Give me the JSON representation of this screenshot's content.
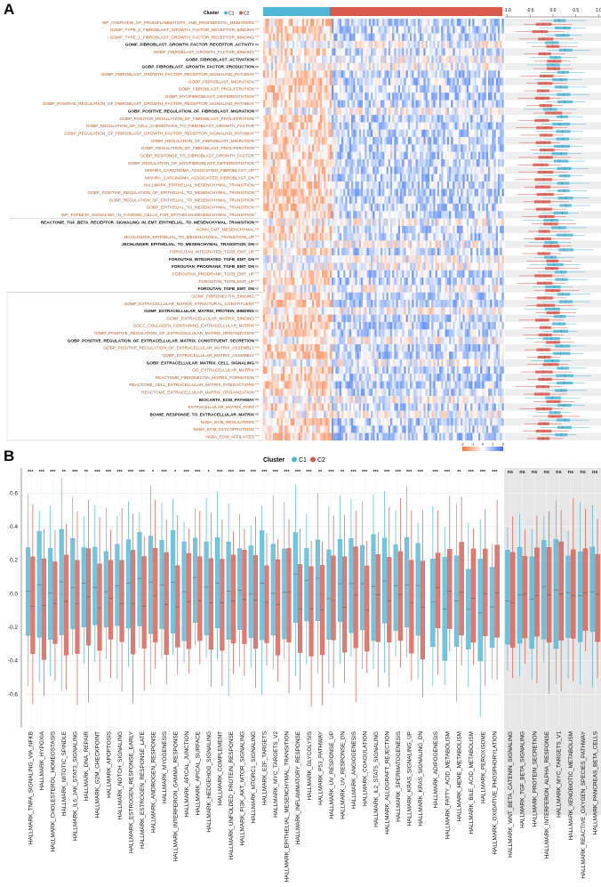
{
  "panel_a": {
    "letter": "A",
    "cluster_label": "Cluster",
    "legend": [
      {
        "name": "C1",
        "color": "#4fb6d6"
      },
      {
        "name": "C2",
        "color": "#d9594c"
      }
    ],
    "scale_ticks": [
      "-1.0",
      "-0.5",
      "0.0",
      "0.5",
      "1.0"
    ],
    "colorbar_ticks": [
      "-2",
      "-1",
      "0",
      "1",
      "2"
    ],
    "rows": [
      {
        "label": "WP_OVERVIEW_OF_PROINFLAMMATORY_AND_PROFIBROTIC_MEDIATORS",
        "sig": "***",
        "color": "#b5541a"
      },
      {
        "label": "GOMF_TYPE_2_FIBROBLAST_GROWTH_FACTOR_RECEPTOR_BINDING",
        "sig": "***",
        "color": "#b5541a"
      },
      {
        "label": "GOMF_TYPE_1_FIBROBLAST_GROWTH_FACTOR_RECEPTOR_BINDING",
        "sig": "***",
        "color": "#b5541a"
      },
      {
        "label": "GOMF_FIBROBLAST_GROWTH_FACTOR_RECEPTOR_ACTIVITY",
        "sig": "ns",
        "color": "#111111"
      },
      {
        "label": "GOMF_FIBROBLAST_GROWTH_FACTOR_BINDING",
        "sig": "***",
        "color": "#b5541a"
      },
      {
        "label": "GOBP_FIBROBLAST_ACTIVATION",
        "sig": "ns",
        "color": "#111111"
      },
      {
        "label": "GOBP_FIBROBLAST_GROWTH_FACTOR_PRODUCTION",
        "sig": "ns",
        "color": "#111111"
      },
      {
        "label": "GOBP_FIBROBLAST_GROWTH_FACTOR_RECEPTOR_SIGNALING_PATHWAY",
        "sig": "***",
        "color": "#b5541a"
      },
      {
        "label": "GOBP_FIBROBLAST_MIGRATION",
        "sig": "***",
        "color": "#b5541a"
      },
      {
        "label": "GOBP_FIBROBLAST_PROLIFERATION",
        "sig": "***",
        "color": "#b5541a"
      },
      {
        "label": "GOBP_MYOFIBROBLAST_DIFFERENTIATION",
        "sig": "***",
        "color": "#b5541a"
      },
      {
        "label": "GOBP_POSITIVE_REGULATION_OF_FIBROBLAST_GROWTH_FACTOR_RECEPTOR_SIGNALING_PATHWAY",
        "sig": "***",
        "color": "#b5541a"
      },
      {
        "label": "GOBP_POSITIVE_REGULATION_OF_FIBROBLAST_MIGRATION",
        "sig": "ns",
        "color": "#111111"
      },
      {
        "label": "GOBP_POSITIVE_REGULATION_OF_FIBROBLAST_PROLIFERATION",
        "sig": "***",
        "color": "#b5541a"
      },
      {
        "label": "GOBP_REGULATION_OF_CELL_CHEMOTAXIS_TO_FIBROBLAST_GROWTH_FACTOR",
        "sig": "***",
        "color": "#b5541a"
      },
      {
        "label": "GOBP_REGULATION_OF_FIBROBLAST_GROWTH_FACTOR_RECEPTOR_SIGNALING_PATHWAY",
        "sig": "***",
        "color": "#b5541a"
      },
      {
        "label": "GOBP_REGULATION_OF_FIBROBLAST_MIGRATION",
        "sig": "***",
        "color": "#b5541a"
      },
      {
        "label": "GOBP_REGULATION_OF_FIBROBLAST_PROLIFERATION",
        "sig": "***",
        "color": "#b5541a"
      },
      {
        "label": "GOBP_RESPONSE_TO_FIBROBLAST_GROWTH_FACTOR",
        "sig": "***",
        "color": "#b5541a"
      },
      {
        "label": "GOBP_REGULATION_OF_MYOFIBROBLAST_DIFFERENTIATION",
        "sig": "***",
        "color": "#b5541a"
      },
      {
        "label": "MISHRA_CARCINOMA_ASSOCIATED_FIBROBLAST_UP",
        "sig": "***",
        "color": "#b5541a"
      },
      {
        "label": "MISHRA_CARCINOMA_ASSOCIATED_FIBROBLAST_DN",
        "sig": "***",
        "color": "#b5541a"
      },
      {
        "label": "HALLMARK_EPITHELIAL_MESENCHYMAL_TRANSITION",
        "sig": "***",
        "color": "#b5541a"
      },
      {
        "label": "GOBP_POSITIVE_REGULATION_OF_EPITHELIAL_TO_MESENCHYMAL_TRANSITION",
        "sig": "***",
        "color": "#b5541a"
      },
      {
        "label": "GOBP_REGULATION_OF_EPITHELIAL_TO_MESENCHYMAL_TRANSITION",
        "sig": "***",
        "color": "#b5541a"
      },
      {
        "label": "GOBP_EPITHELIAL_TO_MESENCHYMAL_TRANSITION",
        "sig": "***",
        "color": "#b5541a"
      },
      {
        "label": "WP_TGFBETA_SIGNALING_IN_THYROID_CELLS_FOR_EPITHELIALMESENCHYMAL_TRANSITION",
        "sig": "*",
        "color": "#b5541a"
      },
      {
        "label": "REACTOME_TGF_BETA_RECEPTOR_SIGNALING_IN_EMT_EPITHELIAL_TO_MESENCHYMAL_TRANSITION",
        "sig": "ns",
        "color": "#111111"
      },
      {
        "label": "KOHN_EMT_MESENCHYMAL",
        "sig": "***",
        "color": "#b5541a"
      },
      {
        "label": "JECHLINGER_EPITHELIAL_TO_MESENCHYMAL_TRANSITION_UP",
        "sig": "***",
        "color": "#b5541a"
      },
      {
        "label": "JECHLINGER_EPITHELIAL_TO_MESENCHYMAL_TRANSITION_DN",
        "sig": "ns",
        "color": "#111111"
      },
      {
        "label": "FOROUTAN_INTEGRATED_TGFB_EMT_UP",
        "sig": "***",
        "color": "#b5541a"
      },
      {
        "label": "FOROUTAN_INTEGRATED_TGFB_EMT_DN",
        "sig": "ns",
        "color": "#111111"
      },
      {
        "label": "FOROUTAN_PRODRANK_TGFB_EMT_DN",
        "sig": "ns",
        "color": "#111111"
      },
      {
        "label": "FOROUTAN_PRODRANK_TGFB_EMT_UP",
        "sig": "***",
        "color": "#b5541a"
      },
      {
        "label": "FOROUTAN_TGFB_EMT_UP",
        "sig": "***",
        "color": "#b5541a"
      },
      {
        "label": "FOROUTAN_TGFB_EMT_DN",
        "sig": "ns",
        "color": "#111111"
      },
      {
        "label": "GOMF_FIBRONECTIN_BINDING",
        "sig": "***",
        "color": "#b5541a"
      },
      {
        "label": "GOMF_EXTRACELLULAR_MATRIX_STRUCTURAL_CONSTITUENT",
        "sig": "***",
        "color": "#b5541a"
      },
      {
        "label": "GOMF_EXTRACELLULAR_MATRIX_PROTEIN_BINDING",
        "sig": "ns",
        "color": "#111111"
      },
      {
        "label": "GOMF_EXTRACELLULAR_MATRIX_BINDING",
        "sig": "***",
        "color": "#b5541a"
      },
      {
        "label": "GOCC_COLLAGEN_CONTAINING_EXTRACELLULAR_MATRIX",
        "sig": "***",
        "color": "#b5541a"
      },
      {
        "label": "GOBP_POSITIVE_REGULATION_OF_EXTRACELLULAR_MATRIX_ORGANIZATION",
        "sig": "***",
        "color": "#b5541a"
      },
      {
        "label": "GOBP_POSITIVE_REGULATION_OF_EXTRACELLULAR_MATRIX_CONSTITUENT_SECRETION",
        "sig": "ns",
        "color": "#111111"
      },
      {
        "label": "GOBP_POSITIVE_REGULATION_OF_EXTRACELLULAR_MATRIX_ASSEMBLY",
        "sig": "***",
        "color": "#b5541a"
      },
      {
        "label": "GOBP_EXTRACELLULAR_MATRIX_ASSEMBLY",
        "sig": "***",
        "color": "#b5541a"
      },
      {
        "label": "GOBP_EXTRACELLULAR_MATRIX_CELL_SIGNALING",
        "sig": "ns",
        "color": "#111111"
      },
      {
        "label": "GO_EXTRACELLULAR_MATRIX",
        "sig": "***",
        "color": "#b5541a"
      },
      {
        "label": "REACTOME_FIBRONECTIN_MATRIX_FORMATION",
        "sig": "***",
        "color": "#b5541a"
      },
      {
        "label": "REACTOME_CELL_EXTRACELLULAR_MATRIX_INTERACTIONS",
        "sig": "***",
        "color": "#b5541a"
      },
      {
        "label": "REACTOME_EXTRACELLULAR_MATRIX_ORGANIZATION",
        "sig": "***",
        "color": "#b5541a"
      },
      {
        "label": "BIOCARTA_ECM_PATHWAY",
        "sig": "ns",
        "color": "#111111"
      },
      {
        "label": "EXTRACELLULAR_MATRIX_PART",
        "sig": "***",
        "color": "#b5541a"
      },
      {
        "label": "BOWIE_RESPONSE_TO_EXTRACELLULAR_MATRIX",
        "sig": "ns",
        "color": "#111111"
      },
      {
        "label": "NABA_ECM_REGULATORS",
        "sig": "***",
        "color": "#b5541a"
      },
      {
        "label": "NABA_ECM_GLYCOPROTEINS",
        "sig": "***",
        "color": "#b5541a"
      },
      {
        "label": "NABA_ECM_AFFILIATED",
        "sig": "***",
        "color": "#b5541a"
      }
    ]
  },
  "chart_data": {
    "type": "box",
    "panel": "B",
    "legend_title": "Cluster",
    "series": [
      {
        "name": "C1",
        "color": "#4fb6d6"
      },
      {
        "name": "C2",
        "color": "#d9594c"
      }
    ],
    "ylim": [
      -0.8,
      0.75
    ],
    "yticks": [
      "0.6",
      "0.4",
      "0.2",
      "0.0",
      "-0.2",
      "-0.4",
      "-0.6"
    ],
    "ytick_values": [
      0.6,
      0.4,
      0.2,
      0.0,
      -0.2,
      -0.4,
      -0.6
    ],
    "groups": [
      {
        "name": "group1",
        "shaded": false,
        "categories": [
          {
            "label": "HALLMARK_TNFA_SIGNALING_VIA_NFKB",
            "sig": "***"
          },
          {
            "label": "HALLMARK_HYPOXIA",
            "sig": "***"
          },
          {
            "label": "HALLMARK_CHOLESTEROL_HOMEOSTASIS",
            "sig": "***"
          },
          {
            "label": "HALLMARK_MITOTIC_SPINDLE",
            "sig": "**"
          },
          {
            "label": "HALLMARK_IL6_JAK_STAT3_SIGNALING",
            "sig": "***"
          },
          {
            "label": "HALLMARK_DNA_REPAIR",
            "sig": "**"
          },
          {
            "label": "HALLMARK_G2M_CHECKPOINT",
            "sig": "***"
          },
          {
            "label": "HALLMARK_APOPTOSIS",
            "sig": "***"
          },
          {
            "label": "HALLMARK_NOTCH_SIGNALING",
            "sig": "***"
          },
          {
            "label": "HALLMARK_ESTROGEN_RESPONSE_EARLY",
            "sig": "***"
          },
          {
            "label": "HALLMARK_ESTROGEN_RESPONSE_LATE",
            "sig": "***"
          },
          {
            "label": "HALLMARK_ANDROGEN_RESPONSE",
            "sig": "*"
          },
          {
            "label": "HALLMARK_MYOGENESIS",
            "sig": "***"
          },
          {
            "label": "HALLMARK_INTERFERON_GAMMA_RESPONSE",
            "sig": "*"
          },
          {
            "label": "HALLMARK_APICAL_JUNCTION",
            "sig": "***"
          },
          {
            "label": "HALLMARK_APICAL_SURFACE",
            "sig": "***"
          },
          {
            "label": "HALLMARK_HEDGEHOG_SIGNALING",
            "sig": "*"
          },
          {
            "label": "HALLMARK_COMPLEMENT",
            "sig": "***"
          },
          {
            "label": "HALLMARK_UNFOLDED_PROTEIN_RESPONSE",
            "sig": "***"
          },
          {
            "label": "HALLMARK_PI3K_AKT_MTOR_SIGNALING",
            "sig": "***"
          },
          {
            "label": "HALLMARK_MTORC1_SIGNALING",
            "sig": "***"
          },
          {
            "label": "HALLMARK_E2F_TARGETS",
            "sig": "***"
          },
          {
            "label": "HALLMARK_MYC_TARGETS_V2",
            "sig": "***"
          },
          {
            "label": "HALLMARK_EPITHELIAL_MESENCHYMAL_TRANSITION",
            "sig": "***"
          },
          {
            "label": "HALLMARK_INFLAMMATORY_RESPONSE",
            "sig": "***"
          },
          {
            "label": "HALLMARK_GLYCOLYSIS",
            "sig": "***"
          },
          {
            "label": "HALLMARK_P53_PATHWAY",
            "sig": "**"
          },
          {
            "label": "HALLMARK_UV_RESPONSE_UP",
            "sig": "***"
          },
          {
            "label": "HALLMARK_UV_RESPONSE_DN",
            "sig": "**"
          },
          {
            "label": "HALLMARK_ANGIOGENESIS",
            "sig": "***"
          },
          {
            "label": "HALLMARK_COAGULATION",
            "sig": "***"
          },
          {
            "label": "HALLMARK_IL2_STAT5_SIGNALING",
            "sig": "***"
          },
          {
            "label": "HALLMARK_ALLOGRAFT_REJECTION",
            "sig": "***"
          },
          {
            "label": "HALLMARK_SPERMATOGENESIS",
            "sig": "***"
          },
          {
            "label": "HALLMARK_KRAS_SIGNALING_UP",
            "sig": "***"
          },
          {
            "label": "HALLMARK_KRAS_SIGNALING_DN",
            "sig": "***"
          }
        ]
      },
      {
        "name": "group2",
        "shaded": false,
        "categories": [
          {
            "label": "HALLMARK_ADIPOGENESIS",
            "sig": "***"
          },
          {
            "label": "HALLMARK_FATTY_ACID_METABOLISM",
            "sig": "***"
          },
          {
            "label": "HALLMARK_HEME_METABOLISM",
            "sig": "**"
          },
          {
            "label": "HALLMARK_BILE_ACID_METABOLISM",
            "sig": "***"
          },
          {
            "label": "HALLMARK_PEROXISOME",
            "sig": "***"
          },
          {
            "label": "HALLMARK_OXIDATIVE_PHOSPHORYLATION",
            "sig": "***"
          }
        ]
      },
      {
        "name": "group3",
        "shaded": true,
        "categories": [
          {
            "label": "HALLMARK_WNT_BETA_CATENIN_SIGNALING",
            "sig": "ns"
          },
          {
            "label": "HALLMARK_TGF_BETA_SIGNALING",
            "sig": "ns"
          },
          {
            "label": "HALLMARK_PROTEIN_SECRETION",
            "sig": "ns"
          },
          {
            "label": "HALLMARK_INTERFERON_ALPHA_RESPONSE",
            "sig": "ns"
          },
          {
            "label": "HALLMARK_MYC_TARGETS_V1",
            "sig": "ns"
          },
          {
            "label": "HALLMARK_XENOBIOTIC_METABOLISM",
            "sig": "ns"
          },
          {
            "label": "HALLMARK_REACTIVE_OXYGEN_SPECIES_PATHWAY",
            "sig": "ns"
          },
          {
            "label": "HALLMARK_PANCREAS_BETA_CELLS",
            "sig": "ns"
          }
        ]
      }
    ]
  }
}
